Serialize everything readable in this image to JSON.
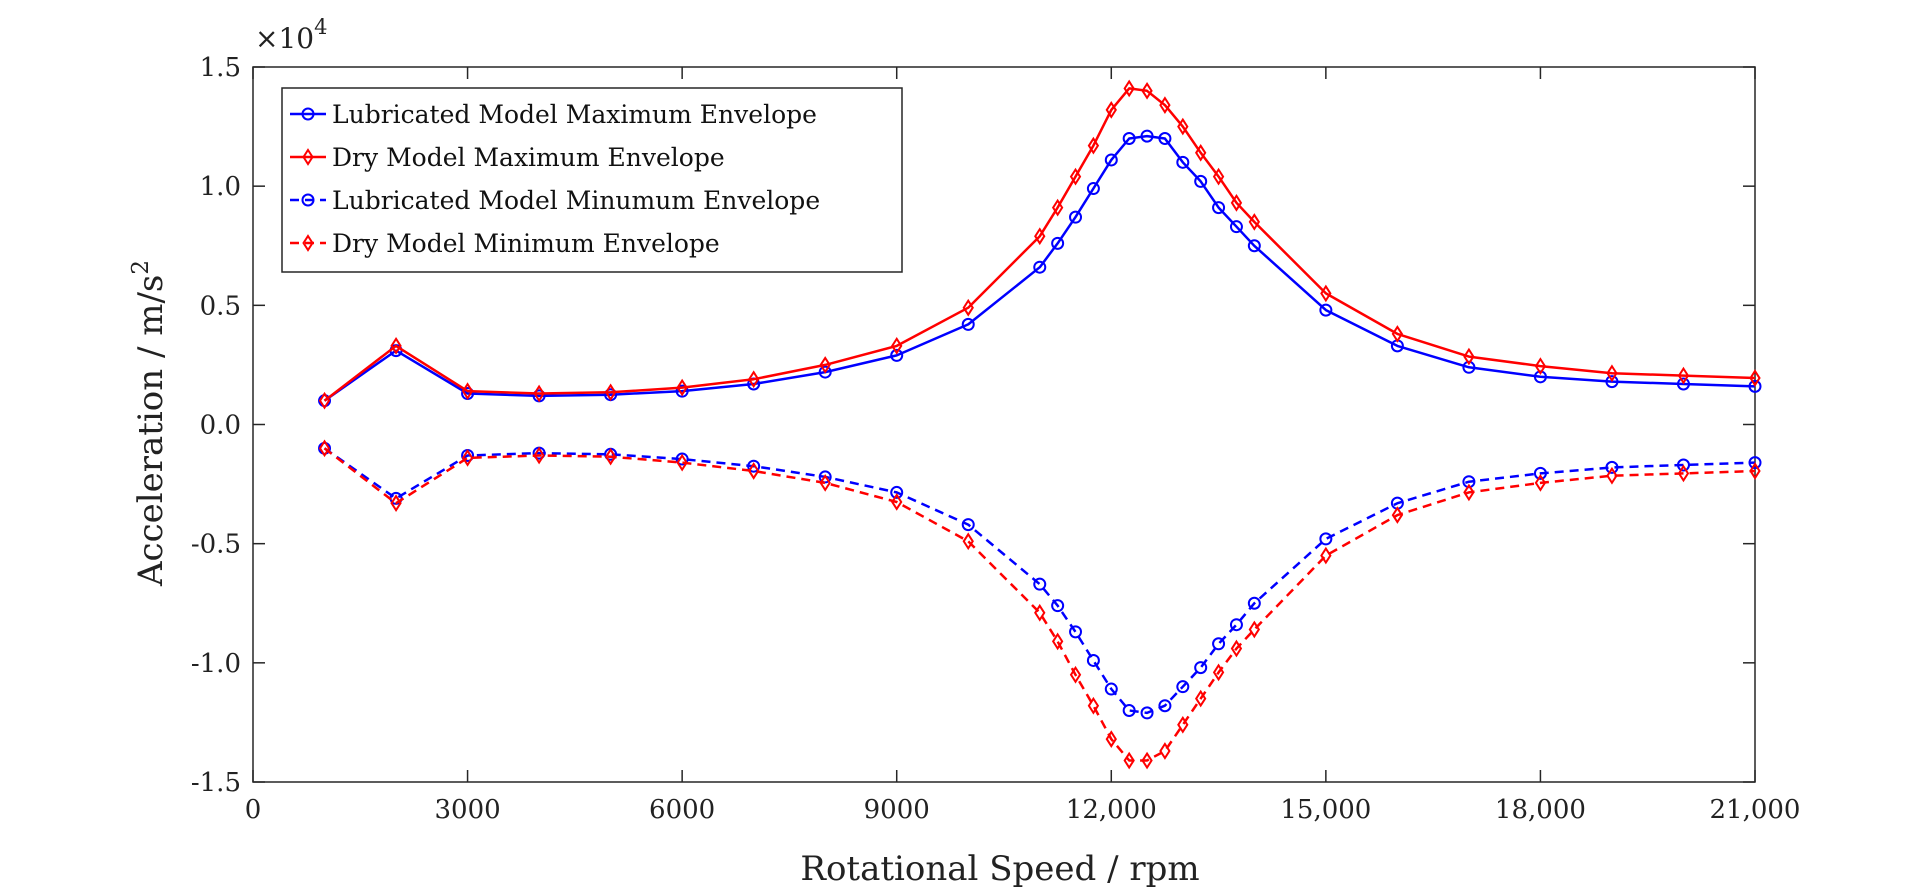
{
  "chart_data": {
    "type": "line",
    "title": "",
    "xlabel": "Rotational Speed / rpm",
    "ylabel": "Acceleration / m/s",
    "ylabel_superscript": "2",
    "y_multiplier_prefix": "×10",
    "y_multiplier_exponent": "4",
    "y_multiplier_value": 10000,
    "xlim": [
      0,
      21000
    ],
    "ylim": [
      -1.5,
      1.5
    ],
    "x_ticks": [
      0,
      3000,
      6000,
      9000,
      12000,
      15000,
      18000,
      21000
    ],
    "x_tick_labels": [
      "0",
      "3000",
      "6000",
      "9000",
      "12,000",
      "15,000",
      "18,000",
      "21,000"
    ],
    "y_ticks": [
      1.5,
      1.0,
      0.5,
      0.0,
      -0.5,
      -1.0,
      -1.5
    ],
    "y_tick_labels": [
      "1.5",
      "1.0",
      "0.5",
      "0.0",
      "-0.5",
      "-1.0",
      "-1.5"
    ],
    "grid": false,
    "legend_position": "top-left",
    "x": [
      1000,
      2000,
      3000,
      4000,
      5000,
      6000,
      7000,
      8000,
      9000,
      10000,
      11000,
      11250,
      11500,
      11750,
      12000,
      12250,
      12500,
      12750,
      13000,
      13250,
      13500,
      13750,
      14000,
      15000,
      16000,
      17000,
      18000,
      19000,
      20000,
      21000
    ],
    "series": [
      {
        "name": "Lubricated Model Maximum Envelope",
        "color": "#0000ff",
        "line_style": "solid",
        "marker": "circle",
        "values": [
          0.1,
          0.31,
          0.13,
          0.12,
          0.125,
          0.14,
          0.17,
          0.22,
          0.29,
          0.42,
          0.66,
          0.76,
          0.87,
          0.99,
          1.11,
          1.2,
          1.21,
          1.2,
          1.1,
          1.02,
          0.91,
          0.83,
          0.75,
          0.48,
          0.33,
          0.24,
          0.2,
          0.18,
          0.17,
          0.16
        ]
      },
      {
        "name": "Dry Model Maximum Envelope",
        "color": "#ff0000",
        "line_style": "solid",
        "marker": "diamond",
        "values": [
          0.1,
          0.33,
          0.14,
          0.13,
          0.135,
          0.155,
          0.19,
          0.25,
          0.33,
          0.49,
          0.79,
          0.91,
          1.04,
          1.17,
          1.32,
          1.41,
          1.4,
          1.34,
          1.25,
          1.14,
          1.04,
          0.93,
          0.85,
          0.55,
          0.38,
          0.285,
          0.245,
          0.215,
          0.205,
          0.195
        ]
      },
      {
        "name": "Lubricated Model Minumum Envelope",
        "color": "#0000ff",
        "line_style": "dashed",
        "marker": "circle",
        "values": [
          -0.1,
          -0.31,
          -0.13,
          -0.12,
          -0.125,
          -0.145,
          -0.175,
          -0.22,
          -0.285,
          -0.42,
          -0.67,
          -0.76,
          -0.87,
          -0.99,
          -1.11,
          -1.2,
          -1.21,
          -1.18,
          -1.1,
          -1.02,
          -0.92,
          -0.84,
          -0.75,
          -0.48,
          -0.33,
          -0.24,
          -0.205,
          -0.18,
          -0.17,
          -0.16
        ]
      },
      {
        "name": "Dry Model Minimum Envelope",
        "color": "#ff0000",
        "line_style": "dashed",
        "marker": "diamond",
        "values": [
          -0.1,
          -0.33,
          -0.14,
          -0.13,
          -0.135,
          -0.16,
          -0.195,
          -0.245,
          -0.325,
          -0.49,
          -0.79,
          -0.91,
          -1.05,
          -1.18,
          -1.32,
          -1.41,
          -1.41,
          -1.37,
          -1.26,
          -1.15,
          -1.04,
          -0.94,
          -0.86,
          -0.55,
          -0.38,
          -0.285,
          -0.245,
          -0.215,
          -0.205,
          -0.195
        ]
      }
    ]
  }
}
